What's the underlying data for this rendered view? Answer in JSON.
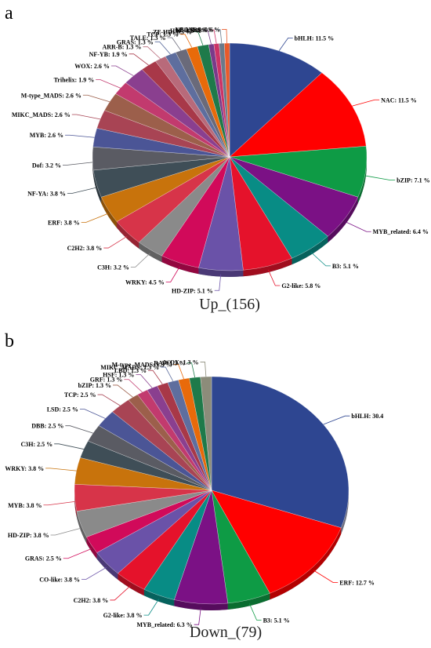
{
  "chart_data": [
    {
      "type": "pie",
      "panel_letter": "a",
      "title": "Up_(156)",
      "slices": [
        {
          "label": "bHLH: 11.5 %",
          "value": 11.5,
          "color": "#2E4691"
        },
        {
          "label": "NAC: 11.5 %",
          "value": 11.5,
          "color": "#FF0000"
        },
        {
          "label": "bZIP: 7.1 %",
          "value": 7.1,
          "color": "#0E9B45"
        },
        {
          "label": "MYB_related: 6.4 %",
          "value": 6.4,
          "color": "#7B1185"
        },
        {
          "label": "B3: 5.1 %",
          "value": 5.1,
          "color": "#088C85"
        },
        {
          "label": "G2-like: 5.8 %",
          "value": 5.8,
          "color": "#E5122B"
        },
        {
          "label": "HD-ZIP: 5.1 %",
          "value": 5.1,
          "color": "#6A52A8"
        },
        {
          "label": "WRKY: 4.5 %",
          "value": 4.5,
          "color": "#D10A5A"
        },
        {
          "label": "C3H: 3.2 %",
          "value": 3.2,
          "color": "#8A8A8A"
        },
        {
          "label": "C2H2: 3.8 %",
          "value": 3.8,
          "color": "#D73449"
        },
        {
          "label": "ERF: 3.8 %",
          "value": 3.8,
          "color": "#C8730C"
        },
        {
          "label": "NF-YA: 3.8 %",
          "value": 3.8,
          "color": "#3F4E57"
        },
        {
          "label": "Dof: 3.2 %",
          "value": 3.2,
          "color": "#5A5B63"
        },
        {
          "label": "MYB: 2.6 %",
          "value": 2.6,
          "color": "#4B5596"
        },
        {
          "label": "MIKC_MADS: 2.6 %",
          "value": 2.6,
          "color": "#A84454"
        },
        {
          "label": "M-type_MADS: 2.6 %",
          "value": 2.6,
          "color": "#9C5F4B"
        },
        {
          "label": "Trihelix: 1.9 %",
          "value": 1.9,
          "color": "#C23A6E"
        },
        {
          "label": "WOX: 2.6 %",
          "value": 2.6,
          "color": "#8A3F8F"
        },
        {
          "label": "NF-YB: 1.9 %",
          "value": 1.9,
          "color": "#A83848"
        },
        {
          "label": "ARR-B: 1.3 %",
          "value": 1.3,
          "color": "#B86A7A"
        },
        {
          "label": "GRAS: 1.3 %",
          "value": 1.3,
          "color": "#5E6E9E"
        },
        {
          "label": "TALE: 1.3 %",
          "value": 1.3,
          "color": "#6A6A7A"
        },
        {
          "label": "TCP: 1.3 %",
          "value": 1.3,
          "color": "#E86A0A"
        },
        {
          "label": "ZF-HD: 1.3 %",
          "value": 1.3,
          "color": "#1E7A4A"
        },
        {
          "label": "HSF: 0.6 %",
          "value": 0.6,
          "color": "#7A3A8A"
        },
        {
          "label": "LBD: 0.6 %",
          "value": 0.6,
          "color": "#CC3366"
        },
        {
          "label": "NF-YC: 0.6 %",
          "value": 0.6,
          "color": "#6A7A8A"
        },
        {
          "label": "SRS: 0.6 %",
          "value": 0.6,
          "color": "#E85A2A"
        }
      ]
    },
    {
      "type": "pie",
      "panel_letter": "b",
      "title": "Down_(79)",
      "slices": [
        {
          "label": "bHLH: 30.4",
          "value": 30.4,
          "color": "#2E4691"
        },
        {
          "label": "ERF: 12.7 %",
          "value": 12.7,
          "color": "#FF0000"
        },
        {
          "label": "B3: 5.1 %",
          "value": 5.1,
          "color": "#0E9B45"
        },
        {
          "label": "MYB_related: 6.3 %",
          "value": 6.3,
          "color": "#7B1185"
        },
        {
          "label": "G2-like: 3.8 %",
          "value": 3.8,
          "color": "#088C85"
        },
        {
          "label": "C2H2: 3.8 %",
          "value": 3.8,
          "color": "#E5122B"
        },
        {
          "label": "CO-like: 3.8 %",
          "value": 3.8,
          "color": "#6A52A8"
        },
        {
          "label": "GRAS: 2.5 %",
          "value": 2.5,
          "color": "#D10A5A"
        },
        {
          "label": "HD-ZIP: 3.8 %",
          "value": 3.8,
          "color": "#8A8A8A"
        },
        {
          "label": "MYB: 3.8 %",
          "value": 3.8,
          "color": "#D73449"
        },
        {
          "label": "WRKY: 3.8 %",
          "value": 3.8,
          "color": "#C8730C"
        },
        {
          "label": "C3H: 2.5 %",
          "value": 2.5,
          "color": "#3F4E57"
        },
        {
          "label": "DBB: 2.5 %",
          "value": 2.5,
          "color": "#5A5B63"
        },
        {
          "label": "LSD: 2.5 %",
          "value": 2.5,
          "color": "#4B5596"
        },
        {
          "label": "TCP: 2.5 %",
          "value": 2.5,
          "color": "#A84454"
        },
        {
          "label": "bZIP: 1.3 %",
          "value": 1.3,
          "color": "#9C5F4B"
        },
        {
          "label": "GRF: 1.3 %",
          "value": 1.3,
          "color": "#C23A6E"
        },
        {
          "label": "HSF: 1.3 %",
          "value": 1.3,
          "color": "#8A3F8F"
        },
        {
          "label": "LBD: 1.3 %",
          "value": 1.3,
          "color": "#A83848"
        },
        {
          "label": "MIKC_MADS: 1.3 %",
          "value": 1.3,
          "color": "#5E6E9E"
        },
        {
          "label": "M-type_MADS: 1.3 %",
          "value": 1.3,
          "color": "#E86A0A"
        },
        {
          "label": "RAV: 1.3 %",
          "value": 1.3,
          "color": "#1E7A4A"
        },
        {
          "label": "WOX: 1.3 %",
          "value": 1.3,
          "color": "#8C8C7A"
        }
      ]
    }
  ]
}
